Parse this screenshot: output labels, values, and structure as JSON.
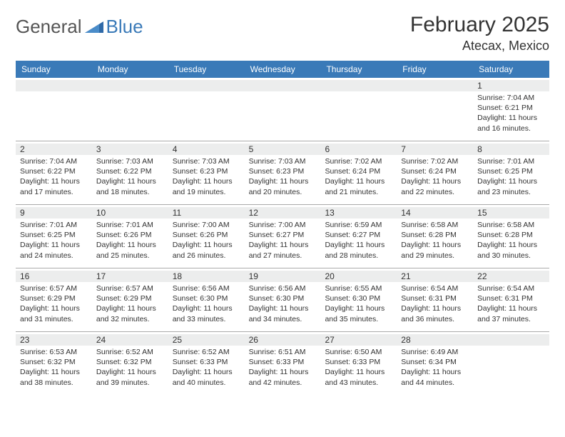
{
  "brand": {
    "general": "General",
    "blue": "Blue"
  },
  "title": {
    "month": "February 2025",
    "location": "Atecax, Mexico"
  },
  "weekdays": [
    "Sunday",
    "Monday",
    "Tuesday",
    "Wednesday",
    "Thursday",
    "Friday",
    "Saturday"
  ],
  "colors": {
    "header_bg": "#3a7ab8",
    "daynum_bg": "#eceded",
    "divider": "#aaaaaa"
  },
  "weeks": [
    [
      {
        "n": "",
        "sr": "",
        "ss": "",
        "dl": ""
      },
      {
        "n": "",
        "sr": "",
        "ss": "",
        "dl": ""
      },
      {
        "n": "",
        "sr": "",
        "ss": "",
        "dl": ""
      },
      {
        "n": "",
        "sr": "",
        "ss": "",
        "dl": ""
      },
      {
        "n": "",
        "sr": "",
        "ss": "",
        "dl": ""
      },
      {
        "n": "",
        "sr": "",
        "ss": "",
        "dl": ""
      },
      {
        "n": "1",
        "sr": "Sunrise: 7:04 AM",
        "ss": "Sunset: 6:21 PM",
        "dl": "Daylight: 11 hours and 16 minutes."
      }
    ],
    [
      {
        "n": "2",
        "sr": "Sunrise: 7:04 AM",
        "ss": "Sunset: 6:22 PM",
        "dl": "Daylight: 11 hours and 17 minutes."
      },
      {
        "n": "3",
        "sr": "Sunrise: 7:03 AM",
        "ss": "Sunset: 6:22 PM",
        "dl": "Daylight: 11 hours and 18 minutes."
      },
      {
        "n": "4",
        "sr": "Sunrise: 7:03 AM",
        "ss": "Sunset: 6:23 PM",
        "dl": "Daylight: 11 hours and 19 minutes."
      },
      {
        "n": "5",
        "sr": "Sunrise: 7:03 AM",
        "ss": "Sunset: 6:23 PM",
        "dl": "Daylight: 11 hours and 20 minutes."
      },
      {
        "n": "6",
        "sr": "Sunrise: 7:02 AM",
        "ss": "Sunset: 6:24 PM",
        "dl": "Daylight: 11 hours and 21 minutes."
      },
      {
        "n": "7",
        "sr": "Sunrise: 7:02 AM",
        "ss": "Sunset: 6:24 PM",
        "dl": "Daylight: 11 hours and 22 minutes."
      },
      {
        "n": "8",
        "sr": "Sunrise: 7:01 AM",
        "ss": "Sunset: 6:25 PM",
        "dl": "Daylight: 11 hours and 23 minutes."
      }
    ],
    [
      {
        "n": "9",
        "sr": "Sunrise: 7:01 AM",
        "ss": "Sunset: 6:25 PM",
        "dl": "Daylight: 11 hours and 24 minutes."
      },
      {
        "n": "10",
        "sr": "Sunrise: 7:01 AM",
        "ss": "Sunset: 6:26 PM",
        "dl": "Daylight: 11 hours and 25 minutes."
      },
      {
        "n": "11",
        "sr": "Sunrise: 7:00 AM",
        "ss": "Sunset: 6:26 PM",
        "dl": "Daylight: 11 hours and 26 minutes."
      },
      {
        "n": "12",
        "sr": "Sunrise: 7:00 AM",
        "ss": "Sunset: 6:27 PM",
        "dl": "Daylight: 11 hours and 27 minutes."
      },
      {
        "n": "13",
        "sr": "Sunrise: 6:59 AM",
        "ss": "Sunset: 6:27 PM",
        "dl": "Daylight: 11 hours and 28 minutes."
      },
      {
        "n": "14",
        "sr": "Sunrise: 6:58 AM",
        "ss": "Sunset: 6:28 PM",
        "dl": "Daylight: 11 hours and 29 minutes."
      },
      {
        "n": "15",
        "sr": "Sunrise: 6:58 AM",
        "ss": "Sunset: 6:28 PM",
        "dl": "Daylight: 11 hours and 30 minutes."
      }
    ],
    [
      {
        "n": "16",
        "sr": "Sunrise: 6:57 AM",
        "ss": "Sunset: 6:29 PM",
        "dl": "Daylight: 11 hours and 31 minutes."
      },
      {
        "n": "17",
        "sr": "Sunrise: 6:57 AM",
        "ss": "Sunset: 6:29 PM",
        "dl": "Daylight: 11 hours and 32 minutes."
      },
      {
        "n": "18",
        "sr": "Sunrise: 6:56 AM",
        "ss": "Sunset: 6:30 PM",
        "dl": "Daylight: 11 hours and 33 minutes."
      },
      {
        "n": "19",
        "sr": "Sunrise: 6:56 AM",
        "ss": "Sunset: 6:30 PM",
        "dl": "Daylight: 11 hours and 34 minutes."
      },
      {
        "n": "20",
        "sr": "Sunrise: 6:55 AM",
        "ss": "Sunset: 6:30 PM",
        "dl": "Daylight: 11 hours and 35 minutes."
      },
      {
        "n": "21",
        "sr": "Sunrise: 6:54 AM",
        "ss": "Sunset: 6:31 PM",
        "dl": "Daylight: 11 hours and 36 minutes."
      },
      {
        "n": "22",
        "sr": "Sunrise: 6:54 AM",
        "ss": "Sunset: 6:31 PM",
        "dl": "Daylight: 11 hours and 37 minutes."
      }
    ],
    [
      {
        "n": "23",
        "sr": "Sunrise: 6:53 AM",
        "ss": "Sunset: 6:32 PM",
        "dl": "Daylight: 11 hours and 38 minutes."
      },
      {
        "n": "24",
        "sr": "Sunrise: 6:52 AM",
        "ss": "Sunset: 6:32 PM",
        "dl": "Daylight: 11 hours and 39 minutes."
      },
      {
        "n": "25",
        "sr": "Sunrise: 6:52 AM",
        "ss": "Sunset: 6:33 PM",
        "dl": "Daylight: 11 hours and 40 minutes."
      },
      {
        "n": "26",
        "sr": "Sunrise: 6:51 AM",
        "ss": "Sunset: 6:33 PM",
        "dl": "Daylight: 11 hours and 42 minutes."
      },
      {
        "n": "27",
        "sr": "Sunrise: 6:50 AM",
        "ss": "Sunset: 6:33 PM",
        "dl": "Daylight: 11 hours and 43 minutes."
      },
      {
        "n": "28",
        "sr": "Sunrise: 6:49 AM",
        "ss": "Sunset: 6:34 PM",
        "dl": "Daylight: 11 hours and 44 minutes."
      },
      {
        "n": "",
        "sr": "",
        "ss": "",
        "dl": ""
      }
    ]
  ]
}
